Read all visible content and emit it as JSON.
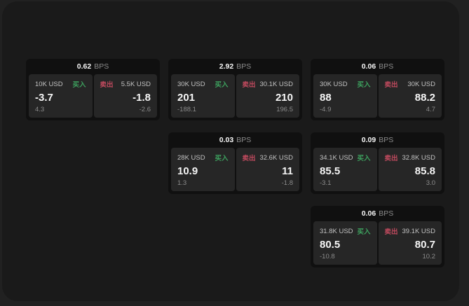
{
  "labels": {
    "bps_suffix": "BPS",
    "buy": "买入",
    "sell": "卖出"
  },
  "colors": {
    "background": "#212121",
    "panel": "#1a1a1a",
    "card": "#101010",
    "subcard": "#262626",
    "buy": "#3da05e",
    "sell": "#c04a5e",
    "text_primary": "#f5f5f5",
    "text_secondary": "#c2c2c2",
    "text_muted": "#8c8c8c"
  },
  "cards": [
    {
      "col": 1,
      "row": 1,
      "bps": "0.62",
      "buy": {
        "amount": "10K USD",
        "price": "-3.7",
        "delta": "4.3"
      },
      "sell": {
        "amount": "5.5K USD",
        "price": "-1.8",
        "delta": "-2.6"
      }
    },
    {
      "col": 2,
      "row": 1,
      "bps": "2.92",
      "buy": {
        "amount": "30K USD",
        "price": "201",
        "delta": "-188.1"
      },
      "sell": {
        "amount": "30.1K USD",
        "price": "210",
        "delta": "196.5"
      }
    },
    {
      "col": 3,
      "row": 1,
      "bps": "0.06",
      "buy": {
        "amount": "30K USD",
        "price": "88",
        "delta": "-4.9"
      },
      "sell": {
        "amount": "30K USD",
        "price": "88.2",
        "delta": "4.7"
      }
    },
    {
      "col": 2,
      "row": 2,
      "bps": "0.03",
      "buy": {
        "amount": "28K USD",
        "price": "10.9",
        "delta": "1.3"
      },
      "sell": {
        "amount": "32.6K USD",
        "price": "11",
        "delta": "-1.8"
      }
    },
    {
      "col": 3,
      "row": 2,
      "bps": "0.09",
      "buy": {
        "amount": "34.1K USD",
        "price": "85.5",
        "delta": "-3.1"
      },
      "sell": {
        "amount": "32.8K USD",
        "price": "85.8",
        "delta": "3.0"
      }
    },
    {
      "col": 3,
      "row": 3,
      "bps": "0.06",
      "buy": {
        "amount": "31.8K USD",
        "price": "80.5",
        "delta": "-10.8"
      },
      "sell": {
        "amount": "39.1K USD",
        "price": "80.7",
        "delta": "10.2"
      }
    }
  ]
}
